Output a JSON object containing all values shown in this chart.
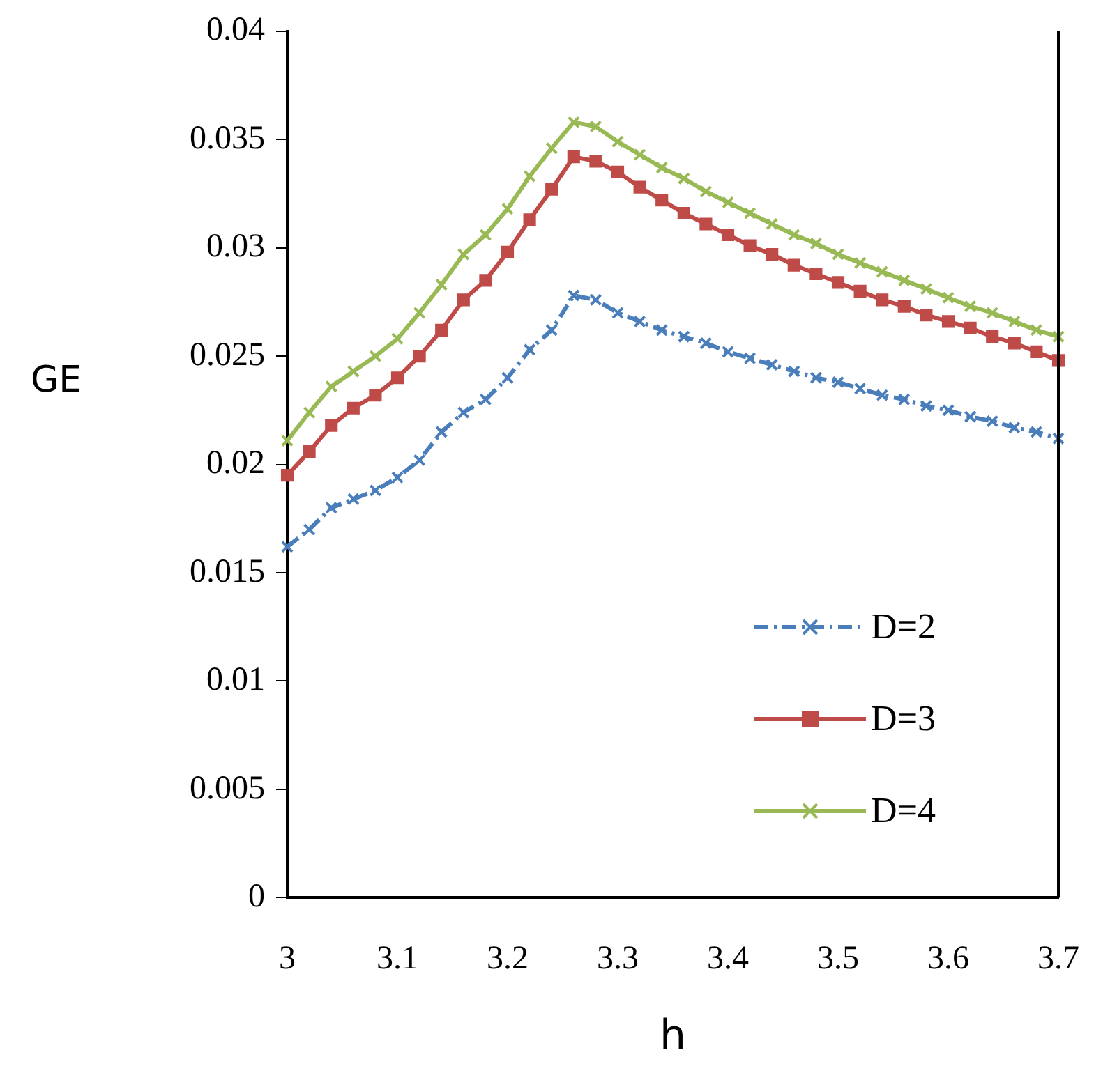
{
  "chart_data": {
    "type": "line",
    "xlabel": "h",
    "ylabel": "GE",
    "x": [
      3.0,
      3.02,
      3.04,
      3.06,
      3.08,
      3.1,
      3.12,
      3.14,
      3.16,
      3.18,
      3.2,
      3.22,
      3.24,
      3.26,
      3.28,
      3.3,
      3.32,
      3.34,
      3.36,
      3.38,
      3.4,
      3.42,
      3.44,
      3.46,
      3.48,
      3.5,
      3.52,
      3.54,
      3.56,
      3.58,
      3.6,
      3.62,
      3.64,
      3.66,
      3.68,
      3.7
    ],
    "series": [
      {
        "name": "D=2",
        "color": "#4a7ebb",
        "marker": "cross",
        "line_style": "dashed",
        "values": [
          0.0162,
          0.017,
          0.018,
          0.0184,
          0.0188,
          0.0194,
          0.0202,
          0.0215,
          0.0224,
          0.023,
          0.024,
          0.0253,
          0.0262,
          0.0278,
          0.0276,
          0.027,
          0.0266,
          0.0262,
          0.0259,
          0.0256,
          0.0252,
          0.0249,
          0.0246,
          0.0243,
          0.024,
          0.0238,
          0.0235,
          0.0232,
          0.023,
          0.0227,
          0.0225,
          0.0222,
          0.022,
          0.0217,
          0.0215,
          0.0212
        ]
      },
      {
        "name": "D=3",
        "color": "#be4b48",
        "marker": "square",
        "line_style": "solid",
        "values": [
          0.0195,
          0.0206,
          0.0218,
          0.0226,
          0.0232,
          0.024,
          0.025,
          0.0262,
          0.0276,
          0.0285,
          0.0298,
          0.0313,
          0.0327,
          0.0342,
          0.034,
          0.0335,
          0.0328,
          0.0322,
          0.0316,
          0.0311,
          0.0306,
          0.0301,
          0.0297,
          0.0292,
          0.0288,
          0.0284,
          0.028,
          0.0276,
          0.0273,
          0.0269,
          0.0266,
          0.0263,
          0.0259,
          0.0256,
          0.0252,
          0.0248
        ]
      },
      {
        "name": "D=4",
        "color": "#98b954",
        "marker": "cross",
        "line_style": "solid",
        "values": [
          0.0211,
          0.0224,
          0.0236,
          0.0243,
          0.025,
          0.0258,
          0.027,
          0.0283,
          0.0297,
          0.0306,
          0.0318,
          0.0333,
          0.0346,
          0.0358,
          0.0356,
          0.0349,
          0.0343,
          0.0337,
          0.0332,
          0.0326,
          0.0321,
          0.0316,
          0.0311,
          0.0306,
          0.0302,
          0.0297,
          0.0293,
          0.0289,
          0.0285,
          0.0281,
          0.0277,
          0.0273,
          0.027,
          0.0266,
          0.0262,
          0.0259
        ]
      }
    ],
    "xlim": [
      3,
      3.7
    ],
    "xticks": [
      3,
      3.1,
      3.2,
      3.3,
      3.4,
      3.5,
      3.6,
      3.7
    ],
    "ylim": [
      0,
      0.04
    ],
    "yticks": [
      0,
      0.005,
      0.01,
      0.015,
      0.02,
      0.025,
      0.03,
      0.035,
      0.04
    ],
    "grid": false,
    "legend": "bottom right"
  }
}
